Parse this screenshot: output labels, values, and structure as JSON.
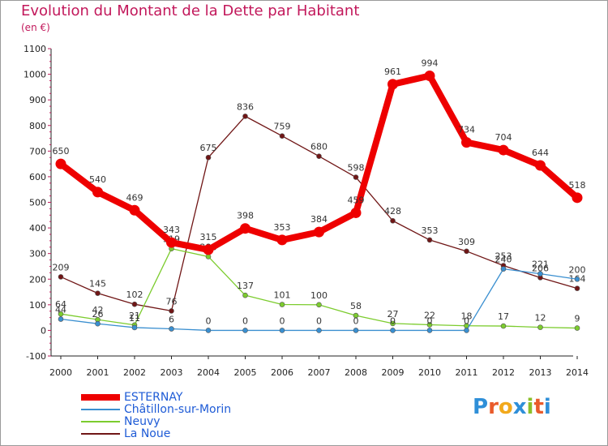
{
  "title": "Evolution du Montant de la Dette par Habitant",
  "subtitle": "(en €)",
  "logo": [
    "P",
    "r",
    "o",
    "x",
    "i",
    "t",
    "i"
  ],
  "chart_data": {
    "type": "line",
    "title": "Evolution du Montant de la Dette par Habitant",
    "subtitle": "(en €)",
    "ylim": [
      -100,
      1100
    ],
    "yticks": [
      -100,
      0,
      100,
      200,
      300,
      400,
      500,
      600,
      700,
      800,
      900,
      1000,
      1100
    ],
    "categories": [
      "2000",
      "2001",
      "2002",
      "2003",
      "2004",
      "2005",
      "2006",
      "2007",
      "2008",
      "2009",
      "2010",
      "2011",
      "2012",
      "2013",
      "2014"
    ],
    "grid": false,
    "legend_position": "bottom-left",
    "series": [
      {
        "name": "ESTERNAY",
        "color": "#ee0000",
        "values": [
          650,
          540,
          469,
          343,
          315,
          398,
          353,
          384,
          459,
          961,
          994,
          734,
          704,
          644,
          518
        ]
      },
      {
        "name": "Châtillon-sur-Morin",
        "color": "#3a8fd0",
        "values": [
          44,
          26,
          11,
          6,
          0,
          0,
          0,
          0,
          0,
          0,
          0,
          0,
          240,
          221,
          200
        ]
      },
      {
        "name": "Neuvy",
        "color": "#7ccc2e",
        "values": [
          64,
          42,
          21,
          319,
          288,
          137,
          101,
          100,
          58,
          27,
          22,
          18,
          17,
          12,
          9
        ]
      },
      {
        "name": "La Noue",
        "color": "#701616",
        "values": [
          209,
          145,
          102,
          76,
          675,
          836,
          759,
          680,
          598,
          428,
          353,
          309,
          253,
          206,
          164
        ]
      }
    ]
  }
}
